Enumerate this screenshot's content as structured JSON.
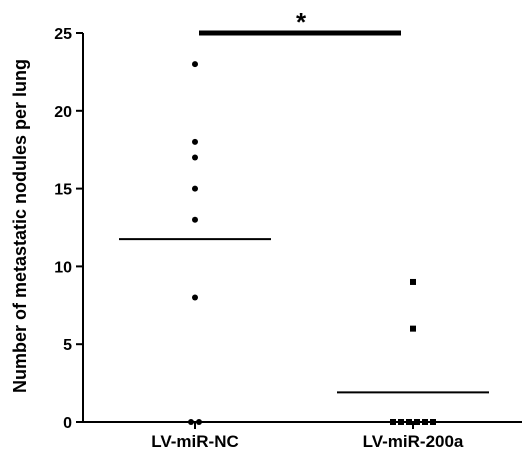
{
  "chart_data": {
    "type": "scatter",
    "title": "",
    "xlabel": "",
    "ylabel": "Number of metastatic nodules per lung",
    "ylim": [
      0,
      25
    ],
    "yticks": [
      "0",
      "5",
      "10",
      "15",
      "20",
      "25"
    ],
    "grid": false,
    "categories": [
      "LV-miR-NC",
      "LV-miR-200a"
    ],
    "series": [
      {
        "category": "LV-miR-NC",
        "marker": "circle",
        "values": [
          23,
          18,
          17,
          15,
          13,
          8,
          0,
          0
        ],
        "mean": 11.75
      },
      {
        "category": "LV-miR-200a",
        "marker": "square",
        "values": [
          9,
          6,
          0,
          0,
          0,
          0,
          0,
          0
        ],
        "mean": 1.9
      }
    ],
    "significance": {
      "label": "*",
      "between": [
        "LV-miR-NC",
        "LV-miR-200a"
      ],
      "y": 25
    }
  }
}
